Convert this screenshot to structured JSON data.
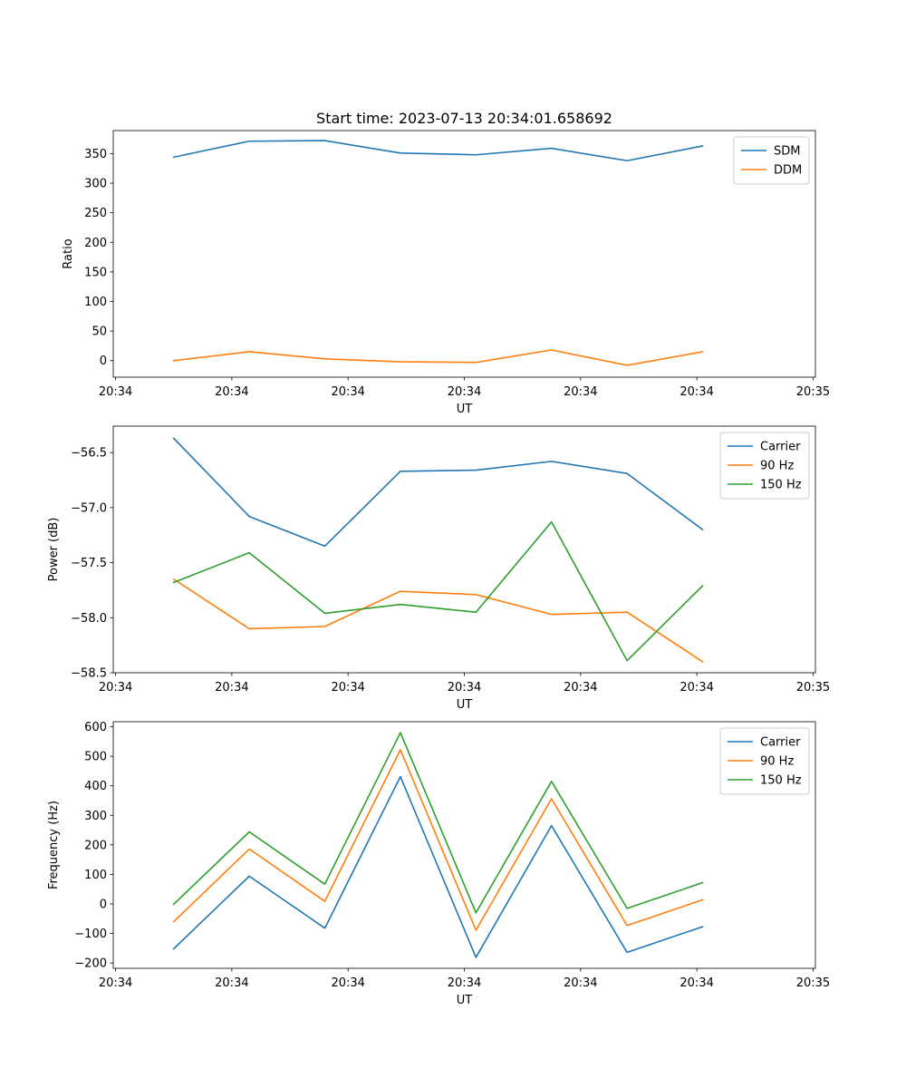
{
  "figure": {
    "title": "Start time: 2023-07-13 20:34:01.658692"
  },
  "chart_data": [
    {
      "type": "line",
      "ylabel": "Ratio",
      "xlabel": "UT",
      "x_ticks": [
        "20:34",
        "20:34",
        "20:34",
        "20:34",
        "20:34",
        "20:34",
        "20:35"
      ],
      "x": [
        0.5,
        1.15,
        1.8,
        2.45,
        3.1,
        3.75,
        4.4,
        5.05
      ],
      "xlim": [
        -0.02,
        6.02
      ],
      "ylim": [
        -28,
        389
      ],
      "y_ticks": [
        0,
        50,
        100,
        150,
        200,
        250,
        300,
        350
      ],
      "legend_position": "upper right",
      "series": [
        {
          "name": "SDM",
          "color": "#1f77b4",
          "values": [
            344,
            371,
            372,
            351,
            348,
            359,
            338,
            363
          ]
        },
        {
          "name": "DDM",
          "color": "#ff7f0e",
          "values": [
            0,
            15,
            3,
            -2,
            -3,
            18,
            -8,
            15
          ]
        }
      ]
    },
    {
      "type": "line",
      "ylabel": "Power (dB)",
      "xlabel": "UT",
      "x_ticks": [
        "20:34",
        "20:34",
        "20:34",
        "20:34",
        "20:34",
        "20:34",
        "20:35"
      ],
      "x": [
        0.5,
        1.15,
        1.8,
        2.45,
        3.1,
        3.75,
        4.4,
        5.05
      ],
      "xlim": [
        -0.02,
        6.02
      ],
      "ylim": [
        -58.5,
        -56.26
      ],
      "y_ticks": [
        -58.5,
        -58.0,
        -57.5,
        -57.0,
        -56.5
      ],
      "legend_position": "upper right",
      "series": [
        {
          "name": "Carrier",
          "color": "#1f77b4",
          "values": [
            -56.37,
            -57.08,
            -57.35,
            -56.67,
            -56.66,
            -56.58,
            -56.69,
            -57.2
          ]
        },
        {
          "name": "90 Hz",
          "color": "#ff7f0e",
          "values": [
            -57.65,
            -58.1,
            -58.08,
            -57.76,
            -57.79,
            -57.97,
            -57.95,
            -58.4
          ]
        },
        {
          "name": "150 Hz",
          "color": "#2ca02c",
          "values": [
            -57.68,
            -57.41,
            -57.96,
            -57.88,
            -57.95,
            -57.13,
            -58.39,
            -57.71
          ]
        }
      ]
    },
    {
      "type": "line",
      "ylabel": "Frequency (Hz)",
      "xlabel": "UT",
      "x_ticks": [
        "20:34",
        "20:34",
        "20:34",
        "20:34",
        "20:34",
        "20:34",
        "20:35"
      ],
      "x": [
        0.5,
        1.15,
        1.8,
        2.45,
        3.1,
        3.75,
        4.4,
        5.05
      ],
      "xlim": [
        -0.02,
        6.02
      ],
      "ylim": [
        -218,
        617
      ],
      "y_ticks": [
        -200,
        -100,
        0,
        100,
        200,
        300,
        400,
        500,
        600
      ],
      "legend_position": "upper right",
      "series": [
        {
          "name": "Carrier",
          "color": "#1f77b4",
          "values": [
            -152,
            94,
            -82,
            431,
            -181,
            265,
            -164,
            -77
          ]
        },
        {
          "name": "90 Hz",
          "color": "#ff7f0e",
          "values": [
            -60,
            186,
            9,
            522,
            -89,
            356,
            -73,
            14
          ]
        },
        {
          "name": "150 Hz",
          "color": "#2ca02c",
          "values": [
            -1,
            244,
            67,
            580,
            -30,
            415,
            -15,
            72
          ]
        }
      ]
    }
  ]
}
